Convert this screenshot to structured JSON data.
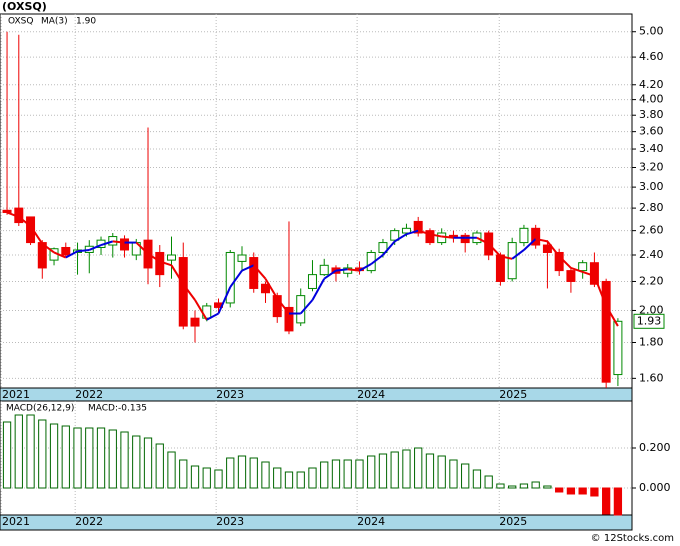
{
  "chart_data": [
    {
      "type": "candlestick",
      "title": "(OXSQ)",
      "series_name": "OXSQ",
      "open": [
        2.78,
        2.8,
        2.72,
        2.5,
        2.36,
        2.46,
        2.42,
        2.42,
        2.46,
        2.48,
        2.53,
        2.4,
        2.52,
        2.42,
        2.36,
        2.38,
        1.95,
        1.95,
        2.05,
        2.05,
        2.35,
        2.38,
        2.18,
        2.1,
        2.02,
        1.92,
        2.15,
        2.25,
        2.3,
        2.26,
        2.3,
        2.28,
        2.42,
        2.52,
        2.58,
        2.68,
        2.6,
        2.5,
        2.56,
        2.56,
        2.5,
        2.58,
        2.4,
        2.22,
        2.5,
        2.62,
        2.48,
        2.42,
        2.28,
        2.28,
        2.34,
        2.2,
        1.62
      ],
      "high": [
        5.0,
        4.95,
        2.72,
        2.52,
        2.46,
        2.5,
        2.5,
        2.52,
        2.55,
        2.58,
        2.56,
        2.53,
        3.65,
        2.48,
        2.55,
        2.5,
        2.0,
        2.05,
        2.08,
        2.44,
        2.47,
        2.42,
        2.2,
        2.12,
        2.68,
        2.15,
        2.36,
        2.37,
        2.32,
        2.33,
        2.35,
        2.44,
        2.53,
        2.62,
        2.66,
        2.72,
        2.62,
        2.62,
        2.6,
        2.58,
        2.6,
        2.6,
        2.42,
        2.54,
        2.65,
        2.65,
        2.52,
        2.45,
        2.3,
        2.36,
        2.42,
        2.22,
        1.95
      ],
      "low": [
        2.74,
        2.64,
        2.48,
        2.22,
        2.32,
        2.38,
        2.25,
        2.26,
        2.4,
        2.38,
        2.38,
        2.36,
        2.18,
        2.16,
        2.22,
        1.88,
        1.8,
        1.93,
        1.98,
        2.02,
        2.28,
        2.12,
        2.05,
        1.92,
        1.85,
        1.9,
        2.13,
        2.24,
        2.2,
        2.23,
        2.25,
        2.26,
        2.38,
        2.48,
        2.55,
        2.55,
        2.48,
        2.48,
        2.5,
        2.42,
        2.48,
        2.36,
        2.17,
        2.2,
        2.47,
        2.45,
        2.15,
        2.24,
        2.12,
        2.22,
        2.16,
        1.55,
        1.56
      ],
      "close": [
        2.76,
        2.67,
        2.5,
        2.3,
        2.45,
        2.4,
        2.44,
        2.47,
        2.52,
        2.55,
        2.44,
        2.5,
        2.3,
        2.25,
        2.4,
        1.9,
        1.9,
        2.03,
        2.02,
        2.42,
        2.4,
        2.15,
        2.12,
        1.96,
        1.87,
        2.1,
        2.25,
        2.32,
        2.26,
        2.3,
        2.28,
        2.42,
        2.5,
        2.6,
        2.62,
        2.58,
        2.5,
        2.58,
        2.54,
        2.5,
        2.58,
        2.4,
        2.2,
        2.5,
        2.62,
        2.48,
        2.42,
        2.28,
        2.2,
        2.34,
        2.18,
        1.58,
        1.93
      ],
      "up_color": "#008800",
      "down_color": "#ee0000",
      "name_color": "#006600",
      "ma": {
        "name": "MA(3)",
        "last_label": "1.90",
        "up_color": "#0000dd",
        "down_color": "#ee0000",
        "values": [
          2.76,
          2.72,
          2.64,
          2.49,
          2.42,
          2.38,
          2.43,
          2.44,
          2.48,
          2.51,
          2.5,
          2.5,
          2.41,
          2.35,
          2.32,
          2.18,
          2.07,
          1.94,
          1.98,
          2.16,
          2.28,
          2.32,
          2.22,
          2.08,
          1.98,
          1.98,
          2.07,
          2.22,
          2.28,
          2.29,
          2.28,
          2.33,
          2.4,
          2.51,
          2.57,
          2.6,
          2.57,
          2.55,
          2.54,
          2.54,
          2.54,
          2.49,
          2.39,
          2.37,
          2.44,
          2.53,
          2.51,
          2.39,
          2.3,
          2.27,
          2.24,
          2.03,
          1.9
        ]
      },
      "log_scale": true,
      "grid": true,
      "ylim": [
        1.55,
        5.3
      ],
      "yticks": [
        {
          "value": 5.0,
          "label": "5.00"
        },
        {
          "value": 4.6,
          "label": "4.60"
        },
        {
          "value": 4.2,
          "label": "4.20"
        },
        {
          "value": 4.0,
          "label": "4.00"
        },
        {
          "value": 3.8,
          "label": "3.80"
        },
        {
          "value": 3.6,
          "label": "3.60"
        },
        {
          "value": 3.4,
          "label": "3.40"
        },
        {
          "value": 3.2,
          "label": "3.20"
        },
        {
          "value": 3.0,
          "label": "3.00"
        },
        {
          "value": 2.8,
          "label": "2.80"
        },
        {
          "value": 2.6,
          "label": "2.60"
        },
        {
          "value": 2.4,
          "label": "2.40"
        },
        {
          "value": 2.2,
          "label": "2.20"
        },
        {
          "value": 2.0,
          "label": "2.00"
        },
        {
          "value": 1.8,
          "label": "1.80"
        },
        {
          "value": 1.6,
          "label": "1.60"
        }
      ],
      "xlim": [
        -0.6,
        53.2
      ],
      "xticks": [
        {
          "value": -0.5,
          "label": "2021"
        },
        {
          "value": 5.8,
          "label": "2022"
        },
        {
          "value": 17.8,
          "label": "2023"
        },
        {
          "value": 29.8,
          "label": "2024"
        },
        {
          "value": 41.9,
          "label": "2025"
        }
      ]
    },
    {
      "type": "bar",
      "title": "MACD(26,12,9)",
      "value_prefix": "MACD:",
      "values": [
        0.33,
        0.365,
        0.365,
        0.34,
        0.32,
        0.31,
        0.3,
        0.3,
        0.3,
        0.29,
        0.28,
        0.26,
        0.25,
        0.22,
        0.18,
        0.14,
        0.11,
        0.1,
        0.09,
        0.15,
        0.16,
        0.15,
        0.13,
        0.1,
        0.08,
        0.08,
        0.1,
        0.13,
        0.14,
        0.14,
        0.14,
        0.16,
        0.17,
        0.18,
        0.19,
        0.2,
        0.17,
        0.16,
        0.14,
        0.12,
        0.09,
        0.06,
        0.02,
        0.01,
        0.02,
        0.03,
        0.01,
        -0.02,
        -0.03,
        -0.03,
        -0.04,
        -0.13,
        -0.135
      ],
      "pos_color": "#006600",
      "neg_color": "#ee0000",
      "label_color": "#0000dd",
      "grid": true,
      "ylim": [
        -0.135,
        0.435
      ],
      "yticks": [
        {
          "value": 0.2,
          "label": "0.200"
        },
        {
          "value": 0,
          "label": "0.000"
        }
      ],
      "xlim": [
        -0.6,
        53.2
      ],
      "xticks": [
        {
          "value": -0.5,
          "label": "2021"
        },
        {
          "value": 5.8,
          "label": "2022"
        },
        {
          "value": 17.8,
          "label": "2023"
        },
        {
          "value": 29.8,
          "label": "2024"
        },
        {
          "value": 41.9,
          "label": "2025"
        }
      ]
    }
  ],
  "watermark": "© 12Stocks.com"
}
